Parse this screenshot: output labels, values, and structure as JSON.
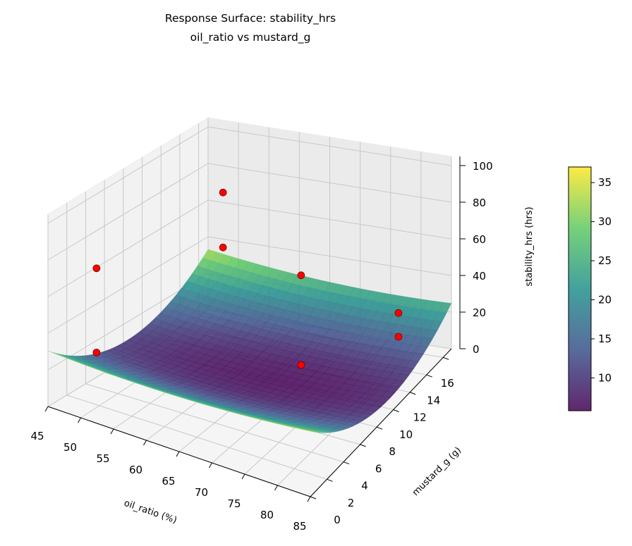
{
  "chart_data": {
    "type": "surface3d",
    "title": "Response Surface: stability_hrs",
    "subtitle": "oil_ratio vs mustard_g",
    "xlabel": "oil_ratio (%)",
    "ylabel": "mustard_g (g)",
    "zlabel": "stability_hrs (hrs)",
    "x_ticks": [
      "45",
      "50",
      "55",
      "60",
      "65",
      "70",
      "75",
      "80",
      "85"
    ],
    "y_ticks": [
      "0",
      "2",
      "4",
      "6",
      "8",
      "10",
      "12",
      "14",
      "16"
    ],
    "z_ticks": [
      "0",
      "20",
      "40",
      "60",
      "80",
      "100"
    ],
    "xlim": [
      45,
      85
    ],
    "ylim": [
      0,
      17
    ],
    "zlim": [
      0,
      105
    ],
    "grid": true,
    "colormap": "viridis",
    "colorbar": {
      "range": [
        5.8,
        37
      ],
      "ticks": [
        "10",
        "15",
        "20",
        "25",
        "30",
        "35"
      ]
    },
    "surface_model": {
      "center_x": 68,
      "center_y": 9,
      "min": 6,
      "a_xx": 0.008,
      "a_yy": 0.3,
      "a_xy": -0.02
    },
    "points": [
      {
        "x": 50,
        "y": 1.7,
        "z": 76
      },
      {
        "x": 50,
        "y": 1.7,
        "z": 30
      },
      {
        "x": 52,
        "y": 14,
        "z": 78
      },
      {
        "x": 52,
        "y": 14,
        "z": 48
      },
      {
        "x": 71,
        "y": 9.5,
        "z": 64
      },
      {
        "x": 71,
        "y": 9.5,
        "z": 15
      },
      {
        "x": 81,
        "y": 13.6,
        "z": 33
      },
      {
        "x": 81,
        "y": 13.6,
        "z": 20
      }
    ],
    "point_color": "#ff0000"
  }
}
